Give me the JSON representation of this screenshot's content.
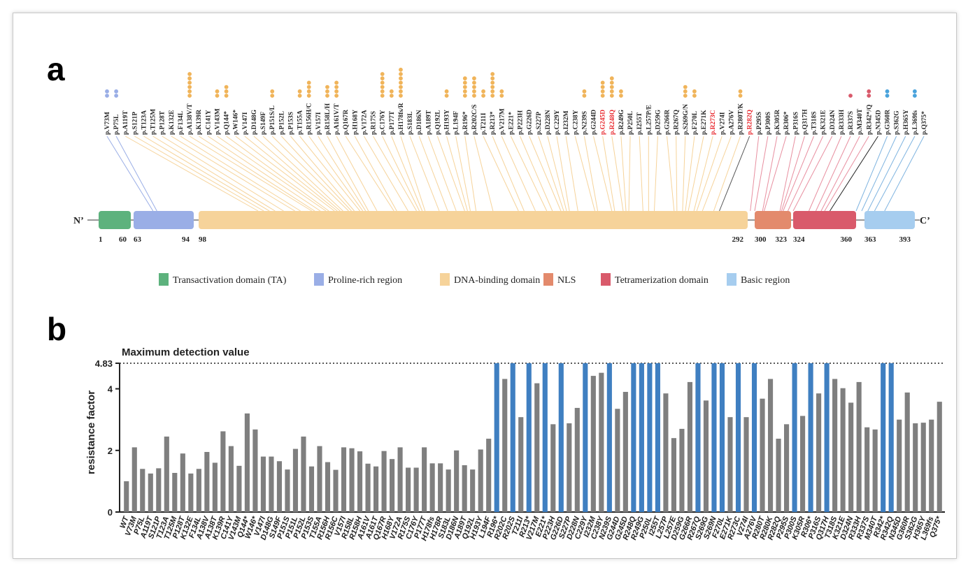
{
  "panel_a": {
    "letter": "a",
    "n_terminal": "N’",
    "c_terminal": "C’",
    "domains": [
      {
        "name": "Transactivation domain (TA)",
        "start": 1,
        "end": 60,
        "color": "#5db27d",
        "start_label": "1",
        "end_label": "60"
      },
      {
        "name": "Proline-rich region",
        "start": 63,
        "end": 94,
        "color": "#9aaee6",
        "start_label": "63",
        "end_label": "94"
      },
      {
        "name": "DNA-binding domain",
        "start": 98,
        "end": 292,
        "color": "#f6d39a",
        "start_label": "98",
        "end_label": "292"
      },
      {
        "name": "NLS",
        "start": 300,
        "end": 323,
        "color": "#e38a6c",
        "start_label": "300",
        "end_label": "323"
      },
      {
        "name": "Tetramerization domain",
        "start": 324,
        "end": 360,
        "color": "#d95a6b",
        "start_label": "324",
        "end_label": "360"
      },
      {
        "name": "Basic region",
        "start": 363,
        "end": 393,
        "color": "#a6cdef",
        "start_label": "363",
        "end_label": "393"
      }
    ],
    "mutations": [
      {
        "label": "p.V73M",
        "pos": 73,
        "dots": 2,
        "color": "#9aaee6",
        "line": "#9aaee6"
      },
      {
        "label": "p.P75L",
        "pos": 75,
        "dots": 2,
        "color": "#9aaee6",
        "line": "#9aaee6"
      },
      {
        "label": "p.A119T",
        "pos": 119,
        "dots": 0,
        "color": "#f0b45a",
        "line": "#f6d39a"
      },
      {
        "label": "p.S121P",
        "pos": 121,
        "dots": 0,
        "color": "#f0b45a",
        "line": "#f6d39a"
      },
      {
        "label": "p.T123A",
        "pos": 123,
        "dots": 0,
        "color": "#f0b45a",
        "line": "#f6d39a"
      },
      {
        "label": "p.T125M",
        "pos": 125,
        "dots": 0,
        "color": "#f0b45a",
        "line": "#f6d39a"
      },
      {
        "label": "p.P128T",
        "pos": 128,
        "dots": 0,
        "color": "#f0b45a",
        "line": "#f6d39a"
      },
      {
        "label": "p.K132E",
        "pos": 132,
        "dots": 0,
        "color": "#f0b45a",
        "line": "#f6d39a"
      },
      {
        "label": "p.F134L",
        "pos": 134,
        "dots": 0,
        "color": "#f0b45a",
        "line": "#f6d39a"
      },
      {
        "label": "p.A138V/T",
        "pos": 138,
        "dots": 6,
        "color": "#f0b45a",
        "line": "#f6d39a"
      },
      {
        "label": "p.K139R",
        "pos": 139,
        "dots": 0,
        "color": "#f0b45a",
        "line": "#f6d39a"
      },
      {
        "label": "p.C141Y",
        "pos": 141,
        "dots": 0,
        "color": "#f0b45a",
        "line": "#f6d39a"
      },
      {
        "label": "p.V143M",
        "pos": 143,
        "dots": 2,
        "color": "#f0b45a",
        "line": "#f6d39a"
      },
      {
        "label": "p.Q144*",
        "pos": 144,
        "dots": 3,
        "color": "#f0b45a",
        "line": "#f6d39a"
      },
      {
        "label": "p.W146*",
        "pos": 146,
        "dots": 0,
        "color": "#f0b45a",
        "line": "#f6d39a"
      },
      {
        "label": "p.V147I",
        "pos": 147,
        "dots": 0,
        "color": "#f0b45a",
        "line": "#f6d39a"
      },
      {
        "label": "p.D148G",
        "pos": 148,
        "dots": 0,
        "color": "#f0b45a",
        "line": "#f6d39a"
      },
      {
        "label": "p.S149F",
        "pos": 149,
        "dots": 0,
        "color": "#f0b45a",
        "line": "#f6d39a"
      },
      {
        "label": "p.P151S/L",
        "pos": 151,
        "dots": 2,
        "color": "#f0b45a",
        "line": "#f6d39a"
      },
      {
        "label": "p.P152L",
        "pos": 152,
        "dots": 0,
        "color": "#f0b45a",
        "line": "#f6d39a"
      },
      {
        "label": "p.P153S",
        "pos": 153,
        "dots": 0,
        "color": "#f0b45a",
        "line": "#f6d39a"
      },
      {
        "label": "p.T155A",
        "pos": 155,
        "dots": 2,
        "color": "#f0b45a",
        "line": "#f6d39a"
      },
      {
        "label": "p.R156H/C",
        "pos": 156,
        "dots": 4,
        "color": "#f0b45a",
        "line": "#f6d39a"
      },
      {
        "label": "p.V157I",
        "pos": 157,
        "dots": 0,
        "color": "#f0b45a",
        "line": "#f6d39a"
      },
      {
        "label": "p.R158L/H",
        "pos": 158,
        "dots": 3,
        "color": "#f0b45a",
        "line": "#f6d39a"
      },
      {
        "label": "p.A161V/T",
        "pos": 161,
        "dots": 4,
        "color": "#f0b45a",
        "line": "#f6d39a"
      },
      {
        "label": "p.Q167R",
        "pos": 167,
        "dots": 0,
        "color": "#f0b45a",
        "line": "#f6d39a"
      },
      {
        "label": "p.H168Y",
        "pos": 168,
        "dots": 0,
        "color": "#f0b45a",
        "line": "#f6d39a"
      },
      {
        "label": "p.V172A",
        "pos": 172,
        "dots": 0,
        "color": "#f0b45a",
        "line": "#f6d39a"
      },
      {
        "label": "p.R175S",
        "pos": 175,
        "dots": 0,
        "color": "#f0b45a",
        "line": "#f6d39a"
      },
      {
        "label": "p.C176Y",
        "pos": 176,
        "dots": 6,
        "color": "#f0b45a",
        "line": "#f6d39a"
      },
      {
        "label": "p.P177T",
        "pos": 177,
        "dots": 2,
        "color": "#f0b45a",
        "line": "#f6d39a"
      },
      {
        "label": "p.H178fs/R",
        "pos": 178,
        "dots": 7,
        "color": "#f0b45a",
        "line": "#f6d39a"
      },
      {
        "label": "p.S183L",
        "pos": 183,
        "dots": 0,
        "color": "#f0b45a",
        "line": "#f6d39a"
      },
      {
        "label": "p.D186N",
        "pos": 186,
        "dots": 0,
        "color": "#f0b45a",
        "line": "#f6d39a"
      },
      {
        "label": "p.A189T",
        "pos": 189,
        "dots": 0,
        "color": "#f0b45a",
        "line": "#f6d39a"
      },
      {
        "label": "p.Q192L",
        "pos": 192,
        "dots": 0,
        "color": "#f0b45a",
        "line": "#f6d39a"
      },
      {
        "label": "p.H193Y",
        "pos": 193,
        "dots": 2,
        "color": "#f0b45a",
        "line": "#f6d39a"
      },
      {
        "label": "p.L194F",
        "pos": 194,
        "dots": 0,
        "color": "#f0b45a",
        "line": "#f6d39a"
      },
      {
        "label": "p.R196*",
        "pos": 196,
        "dots": 5,
        "color": "#f0b45a",
        "line": "#f6d39a"
      },
      {
        "label": "p.R202C/S",
        "pos": 202,
        "dots": 5,
        "color": "#f0b45a",
        "line": "#f6d39a"
      },
      {
        "label": "p.T211I",
        "pos": 211,
        "dots": 2,
        "color": "#f0b45a",
        "line": "#f6d39a"
      },
      {
        "label": "p.R213*",
        "pos": 213,
        "dots": 6,
        "color": "#f0b45a",
        "line": "#f6d39a"
      },
      {
        "label": "p.V217M",
        "pos": 217,
        "dots": 2,
        "color": "#f0b45a",
        "line": "#f6d39a"
      },
      {
        "label": "p.E221*",
        "pos": 221,
        "dots": 0,
        "color": "#f0b45a",
        "line": "#f6d39a"
      },
      {
        "label": "p.P223H",
        "pos": 223,
        "dots": 0,
        "color": "#f0b45a",
        "line": "#f6d39a"
      },
      {
        "label": "p.G226D",
        "pos": 226,
        "dots": 0,
        "color": "#f0b45a",
        "line": "#f6d39a"
      },
      {
        "label": "p.S227P",
        "pos": 227,
        "dots": 0,
        "color": "#f0b45a",
        "line": "#f6d39a"
      },
      {
        "label": "p.D228N",
        "pos": 228,
        "dots": 0,
        "color": "#f0b45a",
        "line": "#f6d39a"
      },
      {
        "label": "p.C229Y",
        "pos": 229,
        "dots": 0,
        "color": "#f0b45a",
        "line": "#f6d39a"
      },
      {
        "label": "p.I232M",
        "pos": 232,
        "dots": 0,
        "color": "#f0b45a",
        "line": "#f6d39a"
      },
      {
        "label": "p.C238Y",
        "pos": 238,
        "dots": 0,
        "color": "#f0b45a",
        "line": "#f6d39a"
      },
      {
        "label": "p.N239S",
        "pos": 239,
        "dots": 2,
        "color": "#f0b45a",
        "line": "#f6d39a"
      },
      {
        "label": "p.G244D",
        "pos": 244,
        "dots": 0,
        "color": "#f0b45a",
        "line": "#f6d39a"
      },
      {
        "label": "p.G245D",
        "pos": 245,
        "dots": 4,
        "color": "#f0b45a",
        "line": "#f6d39a",
        "label_color": "#e8242a"
      },
      {
        "label": "p.R248Q",
        "pos": 248,
        "dots": 5,
        "color": "#f0b45a",
        "line": "#f6d39a",
        "label_color": "#e8242a"
      },
      {
        "label": "p.R249G",
        "pos": 249,
        "dots": 2,
        "color": "#f0b45a",
        "line": "#f6d39a"
      },
      {
        "label": "p.P250L",
        "pos": 250,
        "dots": 0,
        "color": "#f0b45a",
        "line": "#f6d39a"
      },
      {
        "label": "p.I255T",
        "pos": 255,
        "dots": 0,
        "color": "#f0b45a",
        "line": "#f6d39a"
      },
      {
        "label": "p.L257P/E",
        "pos": 257,
        "dots": 0,
        "color": "#f0b45a",
        "line": "#f6d39a"
      },
      {
        "label": "p.D259G",
        "pos": 259,
        "dots": 0,
        "color": "#f0b45a",
        "line": "#f6d39a"
      },
      {
        "label": "p.G266R",
        "pos": 266,
        "dots": 0,
        "color": "#f0b45a",
        "line": "#f6d39a"
      },
      {
        "label": "p.R267Q",
        "pos": 267,
        "dots": 0,
        "color": "#f0b45a",
        "line": "#f6d39a"
      },
      {
        "label": "p.S269G/N",
        "pos": 269,
        "dots": 3,
        "color": "#f0b45a",
        "line": "#f6d39a"
      },
      {
        "label": "p.F270L",
        "pos": 270,
        "dots": 2,
        "color": "#f0b45a",
        "line": "#f6d39a"
      },
      {
        "label": "p.E271K",
        "pos": 271,
        "dots": 0,
        "color": "#f0b45a",
        "line": "#f6d39a"
      },
      {
        "label": "p.R273C",
        "pos": 273,
        "dots": 0,
        "color": "#f0b45a",
        "line": "#f6d39a",
        "label_color": "#e8242a"
      },
      {
        "label": "p.V274I",
        "pos": 274,
        "dots": 0,
        "color": "#f0b45a",
        "line": "#f6d39a"
      },
      {
        "label": "p.A276V",
        "pos": 276,
        "dots": 0,
        "color": "#f0b45a",
        "line": "#f6d39a"
      },
      {
        "label": "p.R280T/K",
        "pos": 280,
        "dots": 2,
        "color": "#f0b45a",
        "line": "#f6d39a"
      },
      {
        "label": "p.R282Q",
        "pos": 282,
        "dots": 0,
        "color": "#f0b45a",
        "line": "#555555",
        "label_color": "#e8242a"
      },
      {
        "label": "p.P295S",
        "pos": 295,
        "dots": 0,
        "color": "#e38a6c",
        "line": "#e88fa0"
      },
      {
        "label": "p.P300S",
        "pos": 300,
        "dots": 0,
        "color": "#e38a6c",
        "line": "#e88fa0"
      },
      {
        "label": "p.K305R",
        "pos": 305,
        "dots": 0,
        "color": "#e38a6c",
        "line": "#e88fa0"
      },
      {
        "label": "p.R306*",
        "pos": 306,
        "dots": 0,
        "color": "#e38a6c",
        "line": "#e88fa0"
      },
      {
        "label": "p.P316S",
        "pos": 316,
        "dots": 0,
        "color": "#e38a6c",
        "line": "#e88fa0"
      },
      {
        "label": "p.Q317H",
        "pos": 317,
        "dots": 0,
        "color": "#e38a6c",
        "line": "#e88fa0"
      },
      {
        "label": "p.T318S",
        "pos": 318,
        "dots": 0,
        "color": "#e38a6c",
        "line": "#e88fa0"
      },
      {
        "label": "p.K321E",
        "pos": 321,
        "dots": 0,
        "color": "#e38a6c",
        "line": "#e88fa0"
      },
      {
        "label": "p.D324N",
        "pos": 324,
        "dots": 0,
        "color": "#d95a6b",
        "line": "#e88fa0"
      },
      {
        "label": "p.R333H",
        "pos": 333,
        "dots": 0,
        "color": "#d95a6b",
        "line": "#e88fa0"
      },
      {
        "label": "p.R337S",
        "pos": 337,
        "dots": 1,
        "color": "#d95a6b",
        "line": "#e88fa0"
      },
      {
        "label": "p.M340T",
        "pos": 340,
        "dots": 0,
        "color": "#d95a6b",
        "line": "#e88fa0"
      },
      {
        "label": "p.R342*/Q",
        "pos": 342,
        "dots": 2,
        "color": "#d95a6b",
        "line": "#e88fa0"
      },
      {
        "label": "p.N345D",
        "pos": 345,
        "dots": 0,
        "color": "#d95a6b",
        "line": "#222222"
      },
      {
        "label": "p.G360R",
        "pos": 360,
        "dots": 2,
        "color": "#4aa3dc",
        "line": "#7fb4e0"
      },
      {
        "label": "p.S362G",
        "pos": 362,
        "dots": 0,
        "color": "#4aa3dc",
        "line": "#7fb4e0"
      },
      {
        "label": "p.H365Y",
        "pos": 365,
        "dots": 0,
        "color": "#4aa3dc",
        "line": "#7fb4e0"
      },
      {
        "label": "p.L369fs",
        "pos": 369,
        "dots": 2,
        "color": "#4aa3dc",
        "line": "#7fb4e0"
      },
      {
        "label": "p.Q375*",
        "pos": 375,
        "dots": 0,
        "color": "#4aa3dc",
        "line": "#7fb4e0"
      }
    ]
  },
  "chart_data": {
    "type": "bar",
    "panel_letter": "b",
    "ylabel": "resistance factor",
    "ylim": [
      0,
      4.83
    ],
    "yticks": [
      0,
      2,
      4
    ],
    "max_label": "4.83",
    "reference_line": {
      "value": 4.83,
      "label": "Maximum detection value",
      "style": "dotted"
    },
    "colors": {
      "normal": "#7f7f7f",
      "at_max": "#3f7fc1"
    },
    "categories": [
      "WT",
      "V73M",
      "P75L",
      "A119T",
      "S121P",
      "T123A",
      "T125M",
      "P128T",
      "K132E",
      "F134L",
      "A138V",
      "A138T",
      "K139R",
      "C141Y",
      "V143M",
      "Q144*",
      "W146*",
      "V147I",
      "D148G",
      "S149F",
      "P151S",
      "P151L",
      "P152L",
      "P153S",
      "T155A",
      "R156H",
      "R156C",
      "V157I",
      "R158L",
      "R158H",
      "A161V",
      "A161T",
      "Q167R",
      "H168Y",
      "V172A",
      "R175S",
      "C176Y",
      "P177T",
      "H178fs",
      "H178R",
      "S183L",
      "D186N",
      "A189T",
      "Q192L",
      "H193Y",
      "L194F",
      "R196*",
      "R202C",
      "R202S",
      "T211I",
      "R213*",
      "V217M",
      "E221*",
      "P223H",
      "G226D",
      "S227P",
      "D228N",
      "C229Y",
      "I232M",
      "C238Y",
      "N239S",
      "G244D",
      "G245D",
      "R248Q",
      "R249G",
      "P250L",
      "I255T",
      "L257P",
      "L257E",
      "D259G",
      "G266R",
      "R267Q",
      "S269G",
      "S269N",
      "F270L",
      "E271K",
      "R273C",
      "V274I",
      "A276V",
      "R280T",
      "R280K",
      "R282Q",
      "P295S",
      "P300S",
      "K305R",
      "R306*",
      "P316S",
      "Q317H",
      "T318S",
      "K321E",
      "D324N",
      "R333H",
      "R337S",
      "M340T",
      "R342*",
      "R342Q",
      "N345D",
      "G360R",
      "S362G",
      "H365Y",
      "L369fs",
      "Q375*"
    ],
    "values": [
      1.0,
      2.1,
      1.4,
      1.25,
      1.42,
      2.45,
      1.27,
      1.9,
      1.25,
      1.4,
      1.95,
      1.6,
      2.62,
      2.14,
      1.5,
      3.2,
      2.68,
      1.8,
      1.8,
      1.65,
      1.38,
      2.05,
      2.45,
      1.48,
      2.14,
      1.62,
      1.37,
      2.1,
      2.07,
      1.97,
      1.57,
      1.48,
      1.98,
      1.72,
      2.1,
      1.44,
      1.44,
      2.1,
      1.58,
      1.58,
      1.38,
      2.0,
      1.52,
      1.38,
      2.03,
      2.38,
      4.83,
      4.32,
      4.83,
      3.08,
      4.83,
      4.18,
      4.83,
      2.85,
      4.83,
      2.88,
      3.38,
      4.83,
      4.42,
      4.52,
      4.83,
      3.35,
      3.9,
      4.83,
      4.83,
      4.83,
      4.83,
      3.85,
      2.4,
      2.7,
      4.22,
      4.83,
      3.62,
      4.83,
      4.83,
      3.08,
      4.83,
      3.08,
      4.83,
      3.68,
      4.32,
      2.38,
      2.85,
      4.83,
      3.12,
      4.83,
      3.85,
      4.83,
      4.32,
      4.02,
      3.55,
      4.22,
      2.75,
      2.68,
      4.83,
      4.83,
      3.0,
      3.88,
      2.88,
      2.9,
      3.0,
      3.58
    ]
  }
}
